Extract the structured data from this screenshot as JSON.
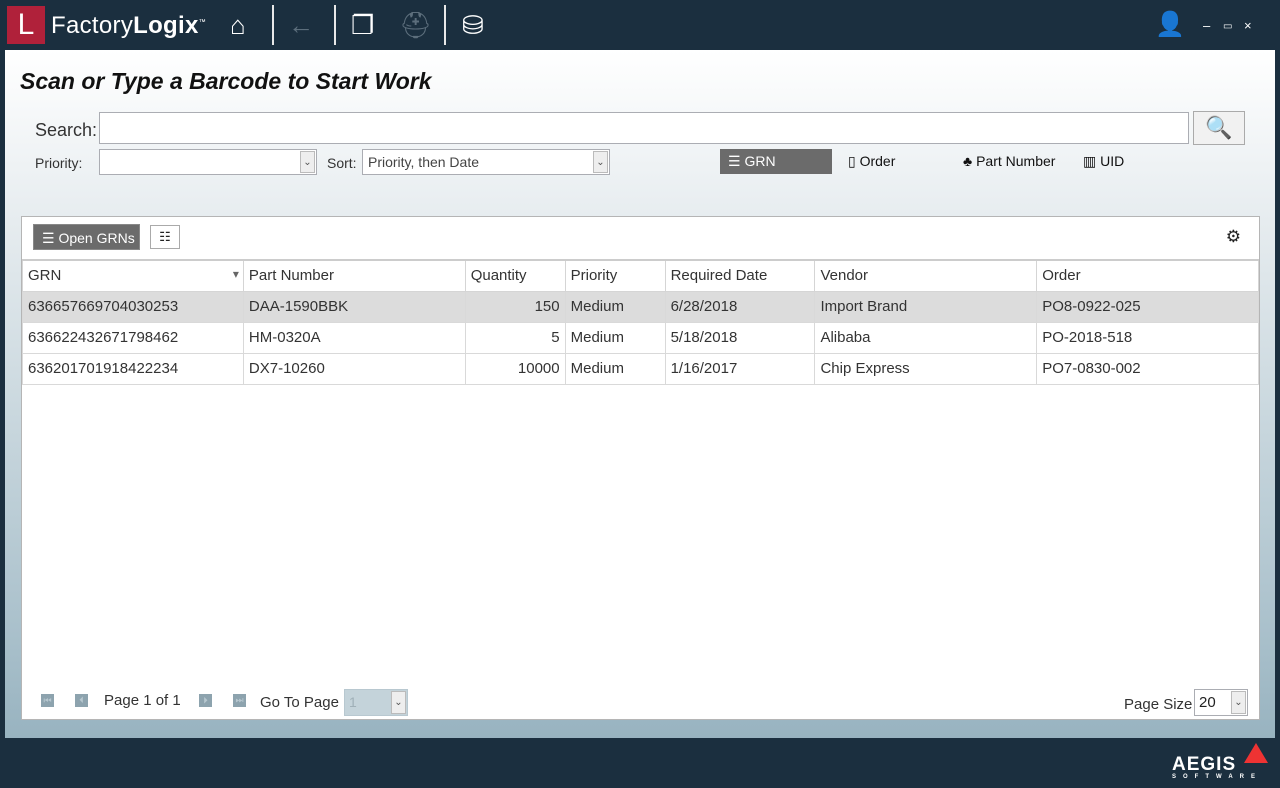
{
  "app": {
    "logo_letter": "L",
    "name_light": "Factory",
    "name_bold": "Logix",
    "tm": "™"
  },
  "page_title": "Scan or Type a Barcode to Start Work",
  "search": {
    "label": "Search:",
    "value": ""
  },
  "priority": {
    "label": "Priority:",
    "value": ""
  },
  "sort": {
    "label": "Sort:",
    "value": "Priority, then Date"
  },
  "modes": [
    {
      "label": "GRN",
      "icon": "grn-list-icon",
      "active": true
    },
    {
      "label": "Order",
      "icon": "order-icon"
    },
    {
      "label": "Part Number",
      "icon": "part-shapes-icon"
    },
    {
      "label": "UID",
      "icon": "barcode-icon"
    }
  ],
  "toolbar": {
    "open_grns": "Open GRNs"
  },
  "table": {
    "columns": [
      "GRN",
      "Part Number",
      "Quantity",
      "Priority",
      "Required Date",
      "Vendor",
      "Order"
    ],
    "sort_column": "GRN",
    "rows": [
      [
        "636657669704030253",
        "DAA-1590BBK",
        "150",
        "Medium",
        "6/28/2018",
        "Import Brand",
        "PO8-0922-025"
      ],
      [
        "636622432671798462",
        "HM-0320A",
        "5",
        "Medium",
        "5/18/2018",
        "Alibaba",
        "PO-2018-518"
      ],
      [
        "636201701918422234",
        "DX7-10260",
        "10000",
        "Medium",
        "1/16/2017",
        "Chip Express",
        "PO7-0830-002"
      ]
    ],
    "selected_row": 0
  },
  "pager": {
    "page_text": "Page 1 of 1",
    "goto_label": "Go To Page",
    "goto_value": "1",
    "size_label": "Page Size",
    "size_value": "20"
  },
  "footer": {
    "brand": "AEGIS",
    "sub": "SOFTWARE"
  },
  "colors": {
    "accent": "#b0213a",
    "titlebar": "#1b2f3f",
    "active_mode": "#6b6b6b"
  }
}
